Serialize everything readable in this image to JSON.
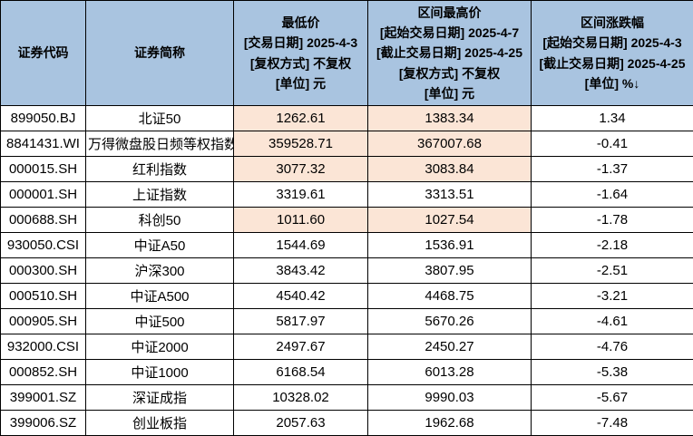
{
  "colors": {
    "header_bg": "#a9c4e0",
    "highlight_bg": "#fbe5d6",
    "grid_border": "#000000",
    "text": "#000000"
  },
  "table": {
    "columns": [
      {
        "key": "code",
        "label": "证券代码"
      },
      {
        "key": "name",
        "label": "证券简称"
      },
      {
        "key": "low",
        "label": "最低价\n[交易日期] 2025-4-3\n[复权方式] 不复权\n[单位] 元"
      },
      {
        "key": "high",
        "label": "区间最高价\n[起始交易日期] 2025-4-7\n[截止交易日期] 2025-4-25\n[复权方式] 不复权\n[单位] 元"
      },
      {
        "key": "change",
        "label": "区间涨跌幅\n[起始交易日期] 2025-4-3\n[截止交易日期] 2025-4-25\n[单位] %↓"
      }
    ],
    "sort_indicator": "↓",
    "rows": [
      {
        "code": "899050.BJ",
        "name": "北证50",
        "low": "1262.61",
        "high": "1383.34",
        "change": "1.34",
        "price_highlight": true
      },
      {
        "code": "8841431.WI",
        "name": "万得微盘股日频等权指数",
        "low": "359528.71",
        "high": "367007.68",
        "change": "-0.41",
        "price_highlight": true
      },
      {
        "code": "000015.SH",
        "name": "红利指数",
        "low": "3077.32",
        "high": "3083.84",
        "change": "-1.37",
        "price_highlight": true
      },
      {
        "code": "000001.SH",
        "name": "上证指数",
        "low": "3319.61",
        "high": "3313.51",
        "change": "-1.64",
        "price_highlight": false
      },
      {
        "code": "000688.SH",
        "name": "科创50",
        "low": "1011.60",
        "high": "1027.54",
        "change": "-1.78",
        "price_highlight": true
      },
      {
        "code": "930050.CSI",
        "name": "中证A50",
        "low": "1544.69",
        "high": "1536.91",
        "change": "-2.18",
        "price_highlight": false
      },
      {
        "code": "000300.SH",
        "name": "沪深300",
        "low": "3843.42",
        "high": "3807.95",
        "change": "-2.51",
        "price_highlight": false
      },
      {
        "code": "000510.SH",
        "name": "中证A500",
        "low": "4540.42",
        "high": "4468.75",
        "change": "-3.21",
        "price_highlight": false
      },
      {
        "code": "000905.SH",
        "name": "中证500",
        "low": "5817.97",
        "high": "5670.26",
        "change": "-4.61",
        "price_highlight": false
      },
      {
        "code": "932000.CSI",
        "name": "中证2000",
        "low": "2497.67",
        "high": "2450.27",
        "change": "-4.76",
        "price_highlight": false
      },
      {
        "code": "000852.SH",
        "name": "中证1000",
        "low": "6168.54",
        "high": "6013.28",
        "change": "-5.38",
        "price_highlight": false
      },
      {
        "code": "399001.SZ",
        "name": "深证成指",
        "low": "10328.02",
        "high": "9990.03",
        "change": "-5.67",
        "price_highlight": false
      },
      {
        "code": "399006.SZ",
        "name": "创业板指",
        "low": "2057.63",
        "high": "1962.68",
        "change": "-7.48",
        "price_highlight": false
      }
    ]
  }
}
